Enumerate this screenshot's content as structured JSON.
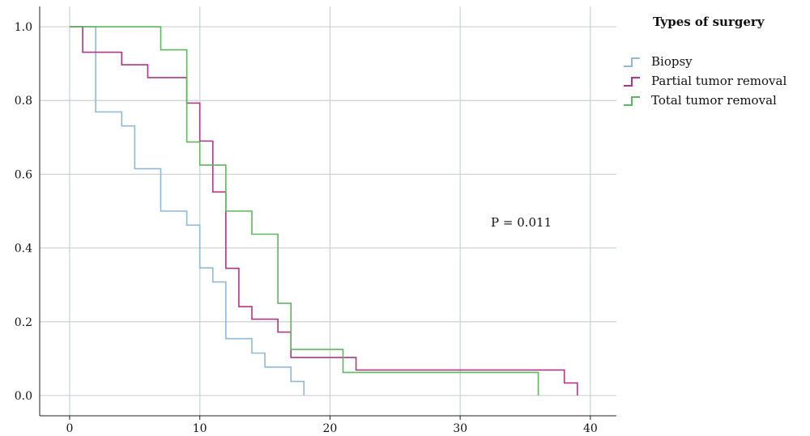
{
  "chart_data": {
    "type": "line",
    "step": true,
    "title": "",
    "xlabel": "",
    "ylabel": "",
    "xlim": [
      -2.3,
      42
    ],
    "ylim": [
      -0.055,
      1.055
    ],
    "xticks": [
      0,
      10,
      20,
      30,
      40
    ],
    "yticks": [
      0.0,
      0.2,
      0.4,
      0.6,
      0.8,
      1.0
    ],
    "xtick_labels": [
      "0",
      "10",
      "20",
      "30",
      "40"
    ],
    "ytick_labels": [
      "0.0",
      "0.2",
      "0.4",
      "0.6",
      "0.8",
      "1.0"
    ],
    "grid": true,
    "legend_title": "Types of surgery",
    "legend_position": "top-right",
    "annotation": "P = 0.011",
    "series": [
      {
        "name": "Biopsy",
        "color": "#8fb8dc",
        "x": [
          0,
          2,
          4,
          5,
          7,
          9,
          10,
          11,
          12,
          14,
          15,
          17,
          18
        ],
        "y": [
          1.0,
          0.769,
          0.731,
          0.615,
          0.5,
          0.462,
          0.346,
          0.308,
          0.154,
          0.115,
          0.077,
          0.038,
          0.0
        ]
      },
      {
        "name": "Partial tumor removal",
        "color": "#b03585",
        "x": [
          0,
          1,
          4,
          6,
          9,
          10,
          11,
          12,
          13,
          14,
          16,
          17,
          22,
          38,
          39
        ],
        "y": [
          1.0,
          0.931,
          0.897,
          0.862,
          0.793,
          0.69,
          0.552,
          0.345,
          0.241,
          0.207,
          0.172,
          0.103,
          0.069,
          0.034,
          0.0
        ]
      },
      {
        "name": "Total tumor removal",
        "color": "#5cb85c",
        "x": [
          0,
          7,
          9,
          10,
          12,
          14,
          16,
          17,
          21,
          36
        ],
        "y": [
          1.0,
          0.9375,
          0.6875,
          0.625,
          0.5,
          0.4375,
          0.25,
          0.125,
          0.0625,
          0.0
        ]
      }
    ]
  }
}
